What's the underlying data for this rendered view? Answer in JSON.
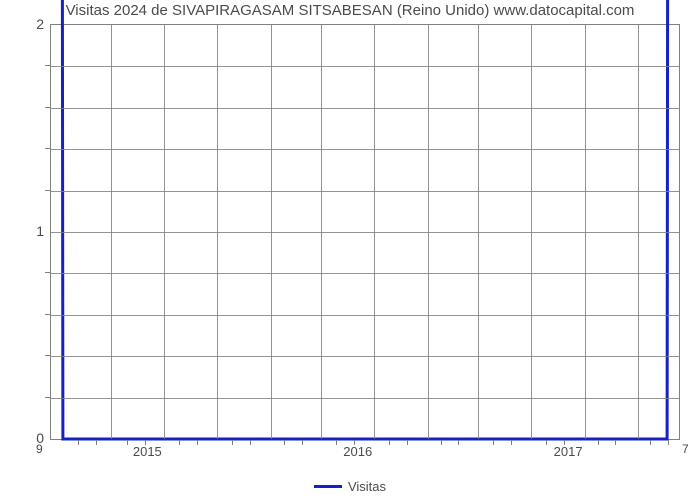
{
  "chart": {
    "type": "line",
    "title": "Visitas 2024 de SIVAPIRAGASAM SITSABESAN (Reino Unido) www.datocapital.com",
    "title_fontsize": 15,
    "title_color": "#4b4b4b",
    "background_color": "#ffffff",
    "plot_border_color": "#808080",
    "grid_color": "#808080",
    "line_color": "#1522c1",
    "line_width": 3,
    "y": {
      "min": 0,
      "max": 2,
      "major_ticks": [
        0,
        1,
        2
      ],
      "minor_tick_count_between": 4,
      "label_fontsize": 14,
      "label_color": "#4b4b4b"
    },
    "x": {
      "major_labels": [
        "2015",
        "2016",
        "2017"
      ],
      "major_positions_pct": [
        15.5,
        49.0,
        82.5
      ],
      "year_grid_positions_pct": [
        9.5,
        18,
        26.5,
        35,
        43,
        51.5,
        60,
        68,
        76.5,
        85,
        93.5
      ],
      "minor_tick_positions_pct": [
        4.5,
        7.3,
        12.3,
        15.1,
        20.6,
        23.4,
        29,
        31.8,
        37.3,
        40.1,
        45.6,
        48.4,
        54,
        56.8,
        62.2,
        65,
        70.6,
        73.4,
        79,
        81.8,
        87.2,
        90,
        95.6,
        98.4
      ],
      "label_fontsize": 13
    },
    "series": {
      "name": "Visitas",
      "points_pct": [
        [
          0,
          50
        ],
        [
          1.9,
          0
        ],
        [
          98.1,
          0
        ],
        [
          100,
          50
        ]
      ]
    },
    "first_value_label": "9",
    "last_value_label": "7",
    "legend": {
      "label": "Visitas",
      "swatch_color": "#1522c1"
    }
  }
}
